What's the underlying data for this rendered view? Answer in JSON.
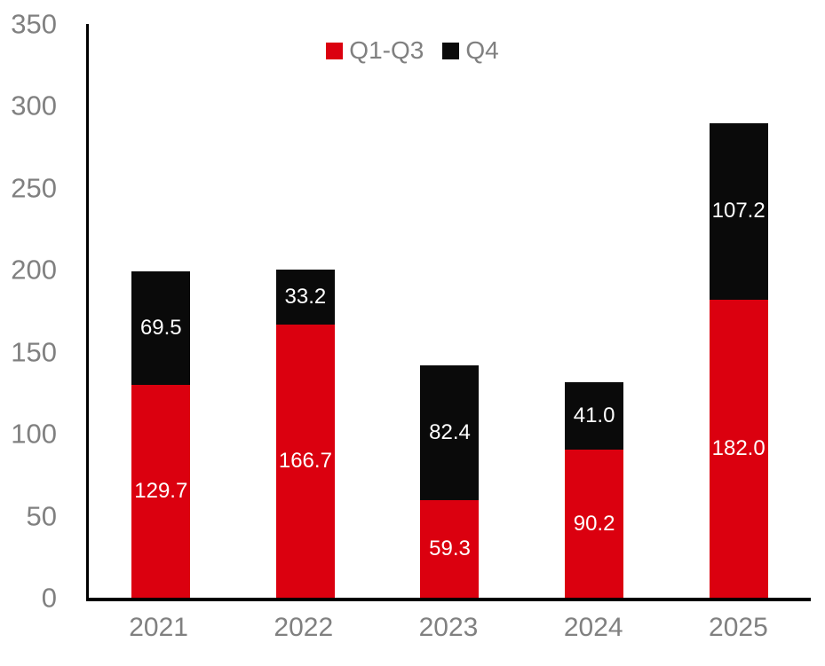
{
  "chart_data": {
    "type": "bar",
    "stacked": true,
    "title": "",
    "xlabel": "",
    "ylabel": "",
    "categories": [
      "2021",
      "2022",
      "2023",
      "2024",
      "2025"
    ],
    "series": [
      {
        "name": "Q1-Q3",
        "color": "#db000f",
        "values": [
          129.7,
          166.7,
          59.3,
          90.2,
          182.0
        ]
      },
      {
        "name": "Q4",
        "color": "#0a0a0a",
        "values": [
          69.5,
          33.2,
          82.4,
          41.0,
          107.2
        ]
      }
    ],
    "value_label_decimals": 1,
    "value_label_color": "#ffffff",
    "ylim": [
      0,
      350
    ],
    "yticks": [
      "0",
      "50",
      "100",
      "150",
      "200",
      "250",
      "300",
      "350"
    ],
    "grid": false,
    "legend_position": "top-center",
    "axis_color": "#000000",
    "tick_label_color": "#808080"
  }
}
